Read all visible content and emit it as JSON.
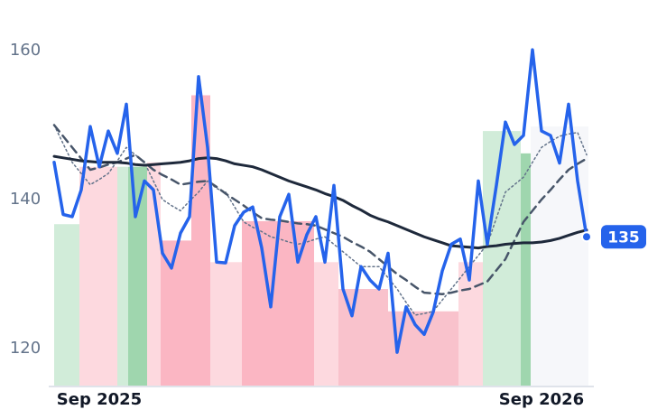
{
  "chart_data": {
    "type": "line",
    "categories": [
      null,
      null,
      null,
      null,
      null,
      "Sep 2025",
      null,
      null,
      null,
      null,
      null,
      null,
      null,
      null,
      null,
      null,
      null,
      null,
      null,
      null,
      null,
      null,
      null,
      null,
      null,
      null,
      null,
      null,
      null,
      null,
      null,
      null,
      null,
      null,
      null,
      null,
      null,
      null,
      null,
      null,
      null,
      null,
      null,
      null,
      null,
      null,
      null,
      null,
      null,
      null,
      null,
      null,
      null,
      null,
      "Sep 2026",
      null,
      null,
      null,
      null,
      null
    ],
    "ylim": [
      115,
      165
    ],
    "yticks": [
      120,
      140,
      160
    ],
    "series": [
      {
        "color": "#2563eb",
        "style": "solid",
        "width": 3.5,
        "values": [
          145,
          138,
          137.7,
          141.3,
          149.8,
          144.4,
          149.2,
          146.2,
          152.8,
          137.7,
          142.5,
          141.3,
          132.8,
          130.8,
          135.5,
          137.7,
          156.5,
          147,
          131.6,
          131.5,
          136.5,
          138.3,
          139,
          133.5,
          125.6,
          137.7,
          140.7,
          131.6,
          135.3,
          137.7,
          131.6,
          141.9,
          128,
          124.4,
          131,
          129.2,
          128,
          132.8,
          119.5,
          125.6,
          123.2,
          121.9,
          124.9,
          130.4,
          134,
          134.7,
          129.2,
          142.5,
          134,
          141.9,
          150.4,
          147.4,
          148.6,
          160.1,
          149.2,
          148.6,
          144.9,
          152.8,
          142.5,
          135
        ]
      },
      {
        "color": "#1e293b",
        "style": "solid",
        "width": 3,
        "values": [
          145.8,
          145.6,
          145.4,
          145.2,
          145.1,
          145,
          145,
          145,
          144.9,
          144.7,
          144.6,
          144.7,
          144.8,
          144.9,
          145,
          145.2,
          145.5,
          145.6,
          145.5,
          145.2,
          144.8,
          144.6,
          144.4,
          144,
          143.5,
          143,
          142.5,
          142.1,
          141.7,
          141.3,
          140.8,
          140.4,
          139.9,
          139.2,
          138.6,
          137.9,
          137.4,
          137,
          136.5,
          136,
          135.5,
          135,
          134.6,
          134.2,
          133.8,
          133.7,
          133.6,
          133.5,
          133.7,
          133.8,
          134,
          134.1,
          134.2,
          134.2,
          134.3,
          134.5,
          134.8,
          135.2,
          135.6,
          135.9
        ]
      },
      {
        "color": "#475569",
        "style": "dashed",
        "width": 2.5,
        "values": [
          150,
          148.5,
          147,
          145.5,
          144,
          144.3,
          144.7,
          145,
          145.5,
          146,
          145,
          144,
          143.3,
          142.7,
          142,
          142.2,
          142.4,
          142.5,
          141.7,
          140.8,
          140,
          139.2,
          138.3,
          137.5,
          137.3,
          137.2,
          137,
          136.8,
          136.7,
          136.5,
          136,
          135.5,
          135,
          134.3,
          133.7,
          133,
          132,
          131,
          130,
          129.2,
          128.3,
          127.5,
          127.4,
          127.3,
          127.5,
          127.8,
          128,
          128.5,
          129,
          130.5,
          132,
          134.5,
          137,
          138.5,
          140,
          141.3,
          142.7,
          144,
          144.8,
          145.5
        ]
      },
      {
        "color": "#64748b",
        "style": "dotted",
        "width": 1.5,
        "values": [
          150,
          147.5,
          145,
          143.5,
          142,
          142.7,
          143.5,
          145.2,
          147,
          146,
          145,
          142.5,
          140,
          139.2,
          138.5,
          139.8,
          141,
          142.5,
          141.5,
          141,
          139,
          137,
          136.3,
          135.7,
          135,
          134.7,
          134.3,
          134,
          134.3,
          134.7,
          135,
          134,
          133,
          132,
          131,
          131,
          131,
          129.5,
          128,
          126.2,
          124.5,
          124.7,
          125,
          126.5,
          128,
          129.5,
          131,
          132.5,
          134,
          137.5,
          141,
          142,
          143,
          145,
          147,
          147.8,
          148.5,
          148.8,
          149,
          146
        ]
      }
    ],
    "bands": [
      {
        "start": 0,
        "end": 2.8,
        "top": 136.7,
        "color": "#d1ecd9"
      },
      {
        "start": 2.8,
        "end": 7,
        "top": 144.4,
        "color": "#fdd9df"
      },
      {
        "start": 7,
        "end": 8.2,
        "top": 144.4,
        "color": "#d1ecd9"
      },
      {
        "start": 8.2,
        "end": 10.3,
        "top": 144.4,
        "color": "#9fd6ae"
      },
      {
        "start": 10.3,
        "end": 11.8,
        "top": 145,
        "color": "#fdd9df"
      },
      {
        "start": 11.8,
        "end": 15.2,
        "top": 134.5,
        "color": "#fbb6c3"
      },
      {
        "start": 15.2,
        "end": 17.3,
        "top": 154,
        "color": "#fbb6c3"
      },
      {
        "start": 17.3,
        "end": 20.8,
        "top": 131.6,
        "color": "#fdd9df"
      },
      {
        "start": 20.8,
        "end": 28.8,
        "top": 137.1,
        "color": "#fbb6c3"
      },
      {
        "start": 28.8,
        "end": 31.5,
        "top": 131.6,
        "color": "#fdd9df"
      },
      {
        "start": 31.5,
        "end": 37,
        "top": 128,
        "color": "#f9c2cc"
      },
      {
        "start": 37,
        "end": 44.8,
        "top": 125,
        "color": "#f9c2cc"
      },
      {
        "start": 44.8,
        "end": 47.5,
        "top": 131.6,
        "color": "#fdd9df"
      },
      {
        "start": 47.5,
        "end": 51.7,
        "top": 149.2,
        "color": "#d1ecd9"
      },
      {
        "start": 51.7,
        "end": 52.8,
        "top": 146.2,
        "color": "#9fd6ae"
      },
      {
        "start": 52.8,
        "end": 59.2,
        "top": 149.8,
        "color": "#f6f7fa"
      }
    ]
  }
}
